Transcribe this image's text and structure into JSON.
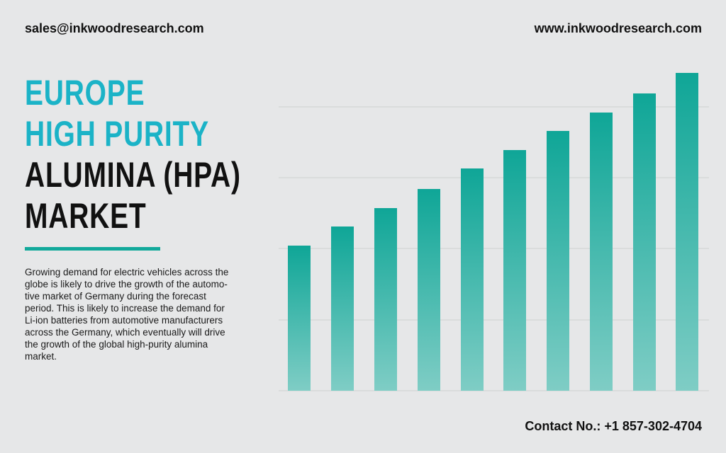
{
  "header": {
    "email": "sales@inkwoodresearch.com",
    "website": "www.inkwoodresearch.com"
  },
  "title": {
    "lines": [
      "EUROPE",
      "HIGH PURITY",
      "ALUMINA (HPA)",
      "MARKET"
    ]
  },
  "description": {
    "lines": [
      "Growing demand for electric vehicles across the",
      "globe is likely to drive the growth of the automo-",
      "tive market of Germany during the forecast",
      "period. This is likely to increase the demand for",
      "Li-ion batteries from automotive manufacturers",
      "across the Germany, which eventually will drive",
      "the growth of the global high-purity alumina",
      "market."
    ]
  },
  "footer": {
    "contact": "Contact No.: +1 857-302-4704"
  }
}
